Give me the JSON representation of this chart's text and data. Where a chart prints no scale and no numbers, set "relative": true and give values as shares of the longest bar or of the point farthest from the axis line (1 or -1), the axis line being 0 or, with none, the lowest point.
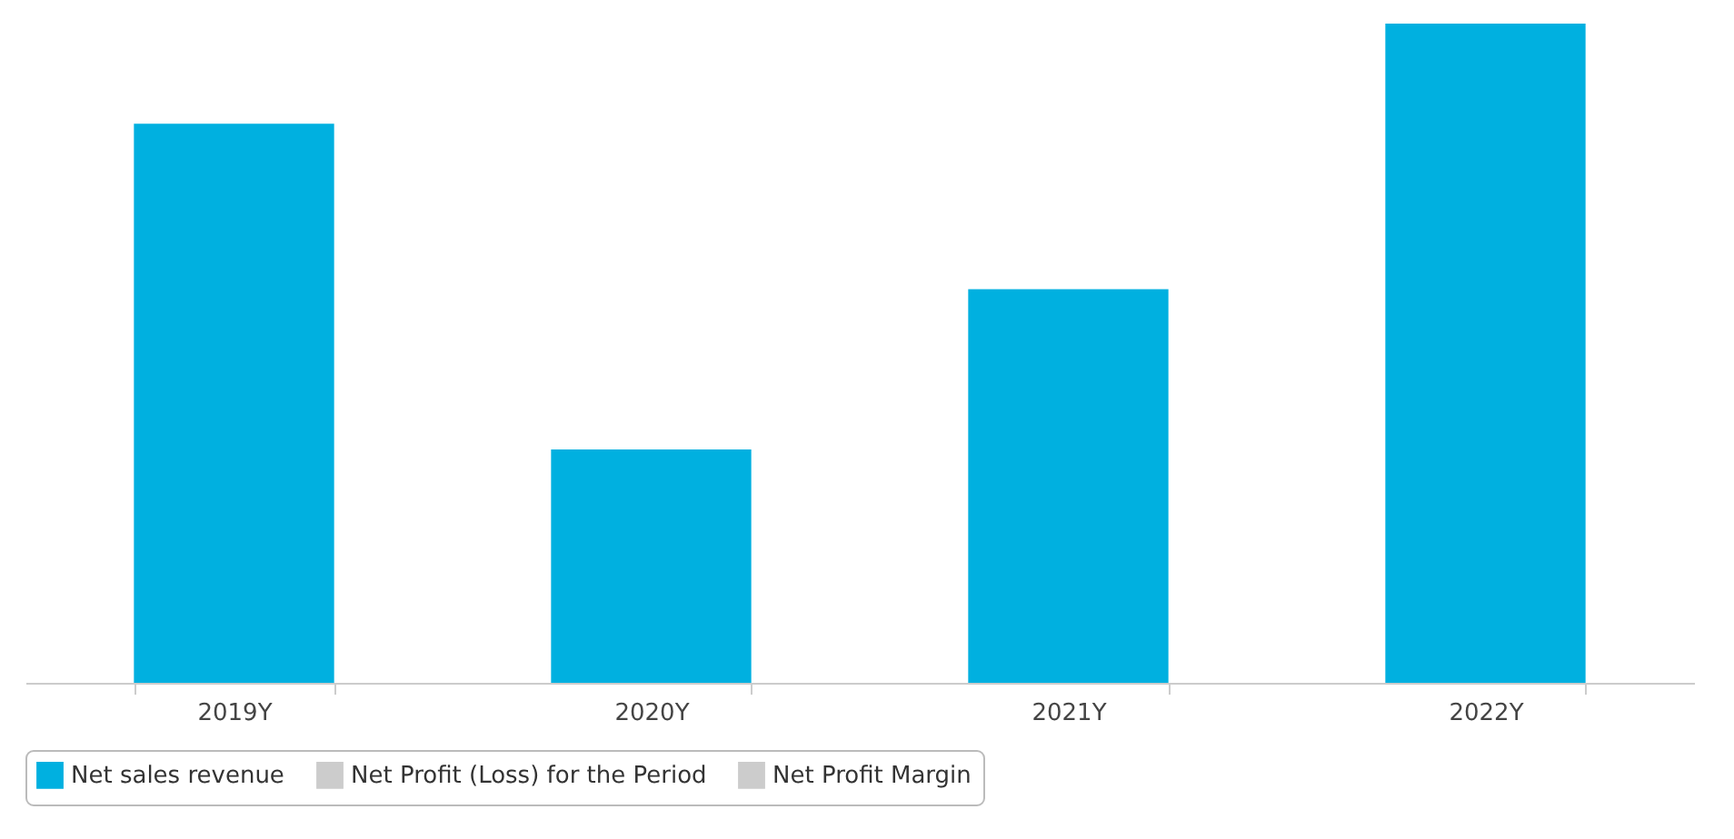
{
  "chart_data": {
    "type": "bar",
    "relative": true,
    "categories": [
      "2019Y",
      "2020Y",
      "2021Y",
      "2022Y"
    ],
    "series": [
      {
        "name": "Net sales revenue",
        "color": "#00b0e0",
        "values": [
          0.848,
          0.354,
          0.597,
          1
        ]
      },
      {
        "name": "Net Profit (Loss) for the Period",
        "color": "#cccccc",
        "values": [
          null,
          null,
          null,
          null
        ]
      },
      {
        "name": "Net Profit Margin",
        "type": "line",
        "color": "#cccccc",
        "values": [
          null,
          null,
          null,
          null
        ]
      }
    ],
    "legend": "bottom"
  }
}
